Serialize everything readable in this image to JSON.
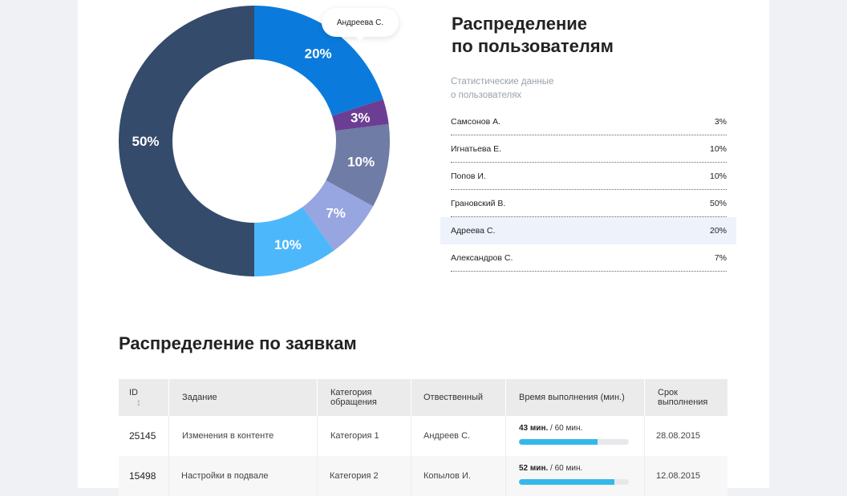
{
  "chart_data": {
    "type": "pie",
    "title": "",
    "series": [
      {
        "name": "Андреева С.",
        "value": 20,
        "label": "20%",
        "color": "#0a7bdc"
      },
      {
        "name": "Самсонов А.",
        "value": 3,
        "label": "3%",
        "color": "#6c3e93"
      },
      {
        "name": "Игнатьева Е.",
        "value": 10,
        "label": "10%",
        "color": "#6f7ca5"
      },
      {
        "name": "Александров С.",
        "value": 7,
        "label": "7%",
        "color": "#97a5e0"
      },
      {
        "name": "Попов И.",
        "value": 10,
        "label": "10%",
        "color": "#4db7fb"
      },
      {
        "name": "Грановский В.",
        "value": 50,
        "label": "50%",
        "color": "#344b6b"
      }
    ],
    "tooltip": "Андреева С."
  },
  "users_panel": {
    "title_line1": "Распределение",
    "title_line2": "по пользователям",
    "subtitle_line1": "Статистические данные",
    "subtitle_line2": "о пользователях",
    "rows": [
      {
        "name": "Самсонов А.",
        "value": "3%",
        "highlight": false
      },
      {
        "name": "Игнатьева Е.",
        "value": "10%",
        "highlight": false
      },
      {
        "name": "Попов И.",
        "value": "10%",
        "highlight": false
      },
      {
        "name": "Грановский В.",
        "value": "50%",
        "highlight": false
      },
      {
        "name": "Адреева С.",
        "value": "20%",
        "highlight": true
      },
      {
        "name": "Александров С.",
        "value": "7%",
        "highlight": false
      }
    ]
  },
  "requests": {
    "title": "Распределение по заявкам",
    "headers": {
      "id": "ID",
      "task": "Задание",
      "category_line1": "Категория",
      "category_line2": "обращения",
      "responsible": "Отвественный",
      "time": "Время выполнения (мин.)",
      "deadline_line1": "Срок",
      "deadline_line2": "выполнения"
    },
    "rows": [
      {
        "id": "25145",
        "task": "Изменения в контенте",
        "category": "Категория 1",
        "responsible": "Андреев С.",
        "time_done": "43 мин.",
        "time_total": "/ 60 мин.",
        "progress": 0.717,
        "deadline": "28.08.2015"
      },
      {
        "id": "15498",
        "task": "Настройки в подвале",
        "category": "Категория 2",
        "responsible": "Копылов И.",
        "time_done": "52 мин.",
        "time_total": "/ 60 мин.",
        "progress": 0.867,
        "deadline": "12.08.2015"
      }
    ]
  }
}
